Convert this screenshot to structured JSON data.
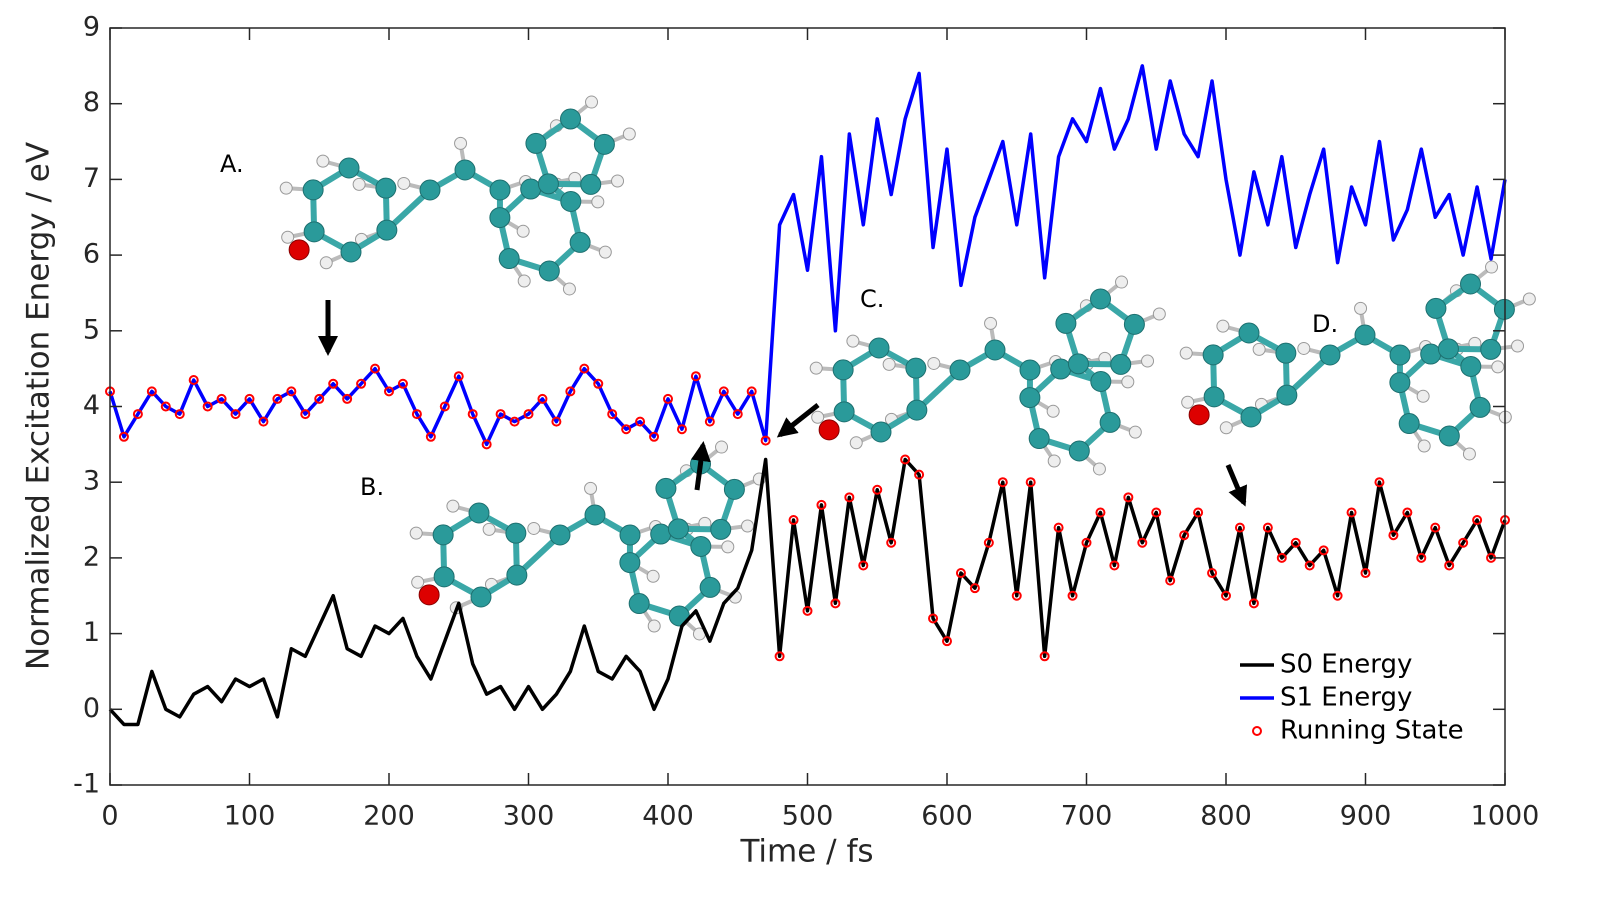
{
  "chart_data": {
    "type": "line",
    "xlabel": "Time / fs",
    "ylabel": "Normalized Excitation Energy / eV",
    "annotations": [
      "A.",
      "B.",
      "C.",
      "D."
    ],
    "x": [
      0,
      10,
      20,
      30,
      40,
      50,
      60,
      70,
      80,
      90,
      100,
      110,
      120,
      130,
      140,
      150,
      160,
      170,
      180,
      190,
      200,
      210,
      220,
      230,
      240,
      250,
      260,
      270,
      280,
      290,
      300,
      310,
      320,
      330,
      340,
      350,
      360,
      370,
      380,
      390,
      400,
      410,
      420,
      430,
      440,
      450,
      460,
      470,
      480,
      490,
      500,
      510,
      520,
      530,
      540,
      550,
      560,
      570,
      580,
      590,
      600,
      610,
      620,
      630,
      640,
      650,
      660,
      670,
      680,
      690,
      700,
      710,
      720,
      730,
      740,
      750,
      760,
      770,
      780,
      790,
      800,
      810,
      820,
      830,
      840,
      850,
      860,
      870,
      880,
      890,
      900,
      910,
      920,
      930,
      940,
      950,
      960,
      970,
      980,
      990,
      1000
    ],
    "series": [
      {
        "name": "S0 Energy",
        "color": "#000000",
        "mode": "line",
        "values": [
          0.0,
          -0.2,
          -0.2,
          0.5,
          0.0,
          -0.1,
          0.2,
          0.3,
          0.1,
          0.4,
          0.3,
          0.4,
          -0.1,
          0.8,
          0.7,
          1.1,
          1.5,
          0.8,
          0.7,
          1.1,
          1.0,
          1.2,
          0.7,
          0.4,
          0.9,
          1.4,
          0.6,
          0.2,
          0.3,
          0.0,
          0.3,
          0.0,
          0.2,
          0.5,
          1.1,
          0.5,
          0.4,
          0.7,
          0.5,
          0.0,
          0.4,
          1.1,
          1.3,
          0.9,
          1.4,
          1.6,
          2.1,
          3.3,
          0.7,
          2.5,
          1.3,
          2.7,
          1.4,
          2.8,
          1.9,
          2.9,
          2.2,
          3.3,
          3.1,
          1.2,
          0.9,
          1.8,
          1.6,
          2.2,
          3.0,
          1.5,
          3.0,
          0.7,
          2.4,
          1.5,
          2.2,
          2.6,
          1.9,
          2.8,
          2.2,
          2.6,
          1.7,
          2.3,
          2.6,
          1.8,
          1.5,
          2.4,
          1.4,
          2.4,
          2.0,
          2.2,
          1.9,
          2.1,
          1.5,
          2.6,
          1.8,
          3.0,
          2.3,
          2.6,
          2.0,
          2.4,
          1.9,
          2.2,
          2.5,
          2.0,
          2.5
        ]
      },
      {
        "name": "S1 Energy",
        "color": "#0000ff",
        "mode": "line",
        "values": [
          4.2,
          3.6,
          3.9,
          4.2,
          4.0,
          3.9,
          4.35,
          4.0,
          4.1,
          3.9,
          4.1,
          3.8,
          4.1,
          4.2,
          3.9,
          4.1,
          4.3,
          4.1,
          4.3,
          4.5,
          4.2,
          4.3,
          3.9,
          3.6,
          4.0,
          4.4,
          3.9,
          3.5,
          3.9,
          3.8,
          3.9,
          4.1,
          3.8,
          4.2,
          4.5,
          4.3,
          3.9,
          3.7,
          3.8,
          3.6,
          4.1,
          3.7,
          4.4,
          3.8,
          4.2,
          3.9,
          4.2,
          3.55,
          6.4,
          6.8,
          5.8,
          7.3,
          5.0,
          7.6,
          6.4,
          7.8,
          6.8,
          7.8,
          8.4,
          6.1,
          7.4,
          5.6,
          6.5,
          7.0,
          7.5,
          6.4,
          7.6,
          5.7,
          7.3,
          7.8,
          7.5,
          8.2,
          7.4,
          7.8,
          8.5,
          7.4,
          8.3,
          7.6,
          7.3,
          8.3,
          7.0,
          6.0,
          7.1,
          6.4,
          7.3,
          6.1,
          6.8,
          7.4,
          5.9,
          6.9,
          6.4,
          7.5,
          6.2,
          6.6,
          7.4,
          6.5,
          6.8,
          6.0,
          6.9,
          5.95,
          7.0
        ]
      },
      {
        "name": "Running State",
        "color": "#ff0000",
        "mode": "markers",
        "values": [
          4.2,
          3.6,
          3.9,
          4.2,
          4.0,
          3.9,
          4.35,
          4.0,
          4.1,
          3.9,
          4.1,
          3.8,
          4.1,
          4.2,
          3.9,
          4.1,
          4.3,
          4.1,
          4.3,
          4.5,
          4.2,
          4.3,
          3.9,
          3.6,
          4.0,
          4.4,
          3.9,
          3.5,
          3.9,
          3.8,
          3.9,
          4.1,
          3.8,
          4.2,
          4.5,
          4.3,
          3.9,
          3.7,
          3.8,
          3.6,
          4.1,
          3.7,
          4.4,
          3.8,
          4.2,
          3.9,
          4.2,
          3.55,
          0.7,
          2.5,
          1.3,
          2.7,
          1.4,
          2.8,
          1.9,
          2.9,
          2.2,
          3.3,
          3.1,
          1.2,
          0.9,
          1.8,
          1.6,
          2.2,
          3.0,
          1.5,
          3.0,
          0.7,
          2.4,
          1.5,
          2.2,
          2.6,
          1.9,
          2.8,
          2.2,
          2.6,
          1.7,
          2.3,
          2.6,
          1.8,
          1.5,
          2.4,
          1.4,
          2.4,
          2.0,
          2.2,
          1.9,
          2.1,
          1.5,
          2.6,
          1.8,
          3.0,
          2.3,
          2.6,
          2.0,
          2.4,
          1.9,
          2.2,
          2.5,
          2.0,
          2.5
        ]
      }
    ],
    "xlim": [
      0,
      1000
    ],
    "xticks": [
      0,
      100,
      200,
      300,
      400,
      500,
      600,
      700,
      800,
      900,
      1000
    ],
    "ylim": [
      -1,
      9
    ],
    "yticks": [
      -1,
      0,
      1,
      2,
      3,
      4,
      5,
      6,
      7,
      8,
      9
    ],
    "legend": "lower right",
    "grid": false
  }
}
